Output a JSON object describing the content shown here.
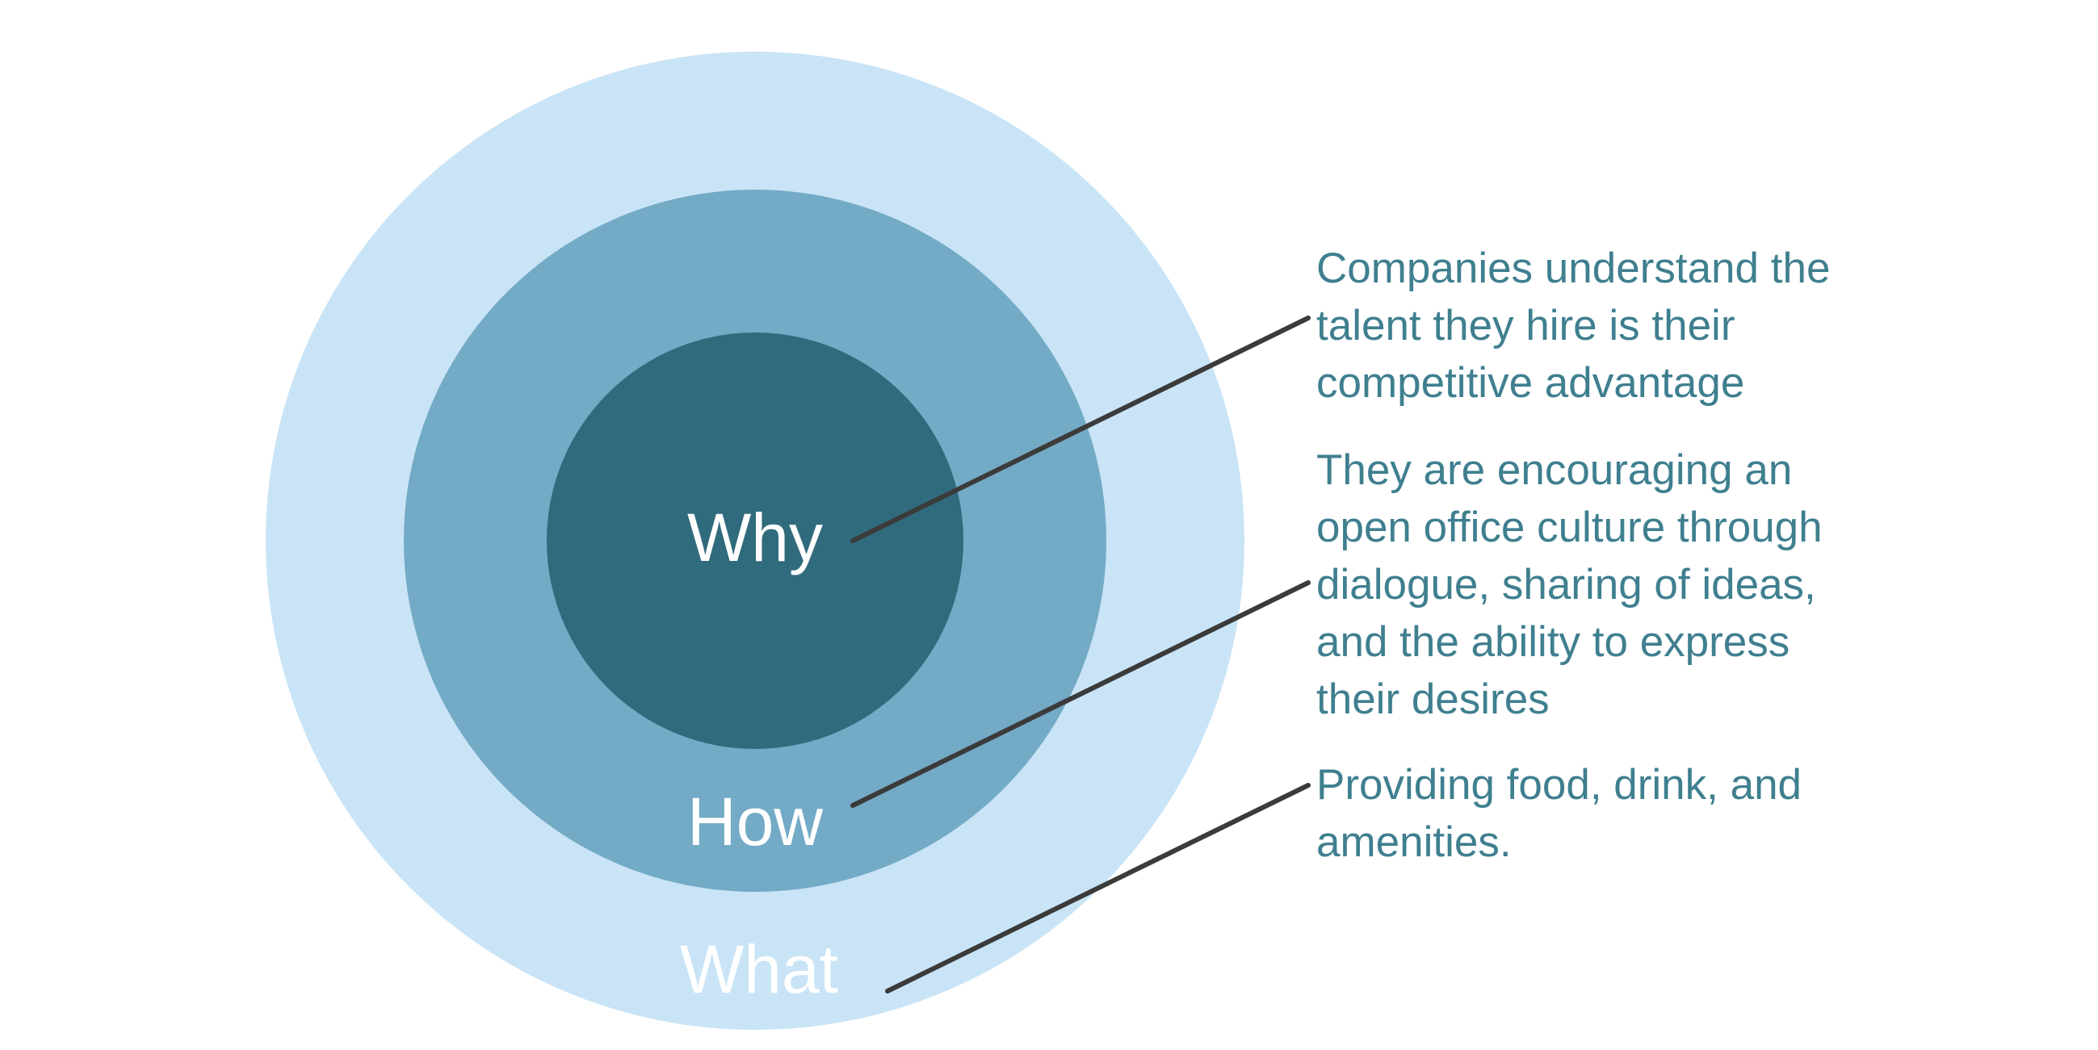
{
  "diagram": {
    "type": "concentric-circles",
    "colors": {
      "outer": "#c9e4f6",
      "middle": "#73aac6",
      "inner": "#306b7d",
      "label": "#ffffff",
      "callout_text": "#3f7f8f",
      "leader_line": "#3b3b3b"
    },
    "rings": {
      "inner": {
        "label": "Why"
      },
      "middle": {
        "label": "How"
      },
      "outer": {
        "label": "What"
      }
    },
    "callouts": {
      "why": {
        "lines": [
          "Companies understand the",
          "talent they hire is their",
          "competitive advantage"
        ]
      },
      "how": {
        "lines": [
          "They are encouraging an",
          "open office culture through",
          "dialogue, sharing of ideas,",
          "and the ability to express",
          "their desires"
        ]
      },
      "what": {
        "lines": [
          "Providing food, drink, and",
          "amenities."
        ]
      }
    }
  }
}
